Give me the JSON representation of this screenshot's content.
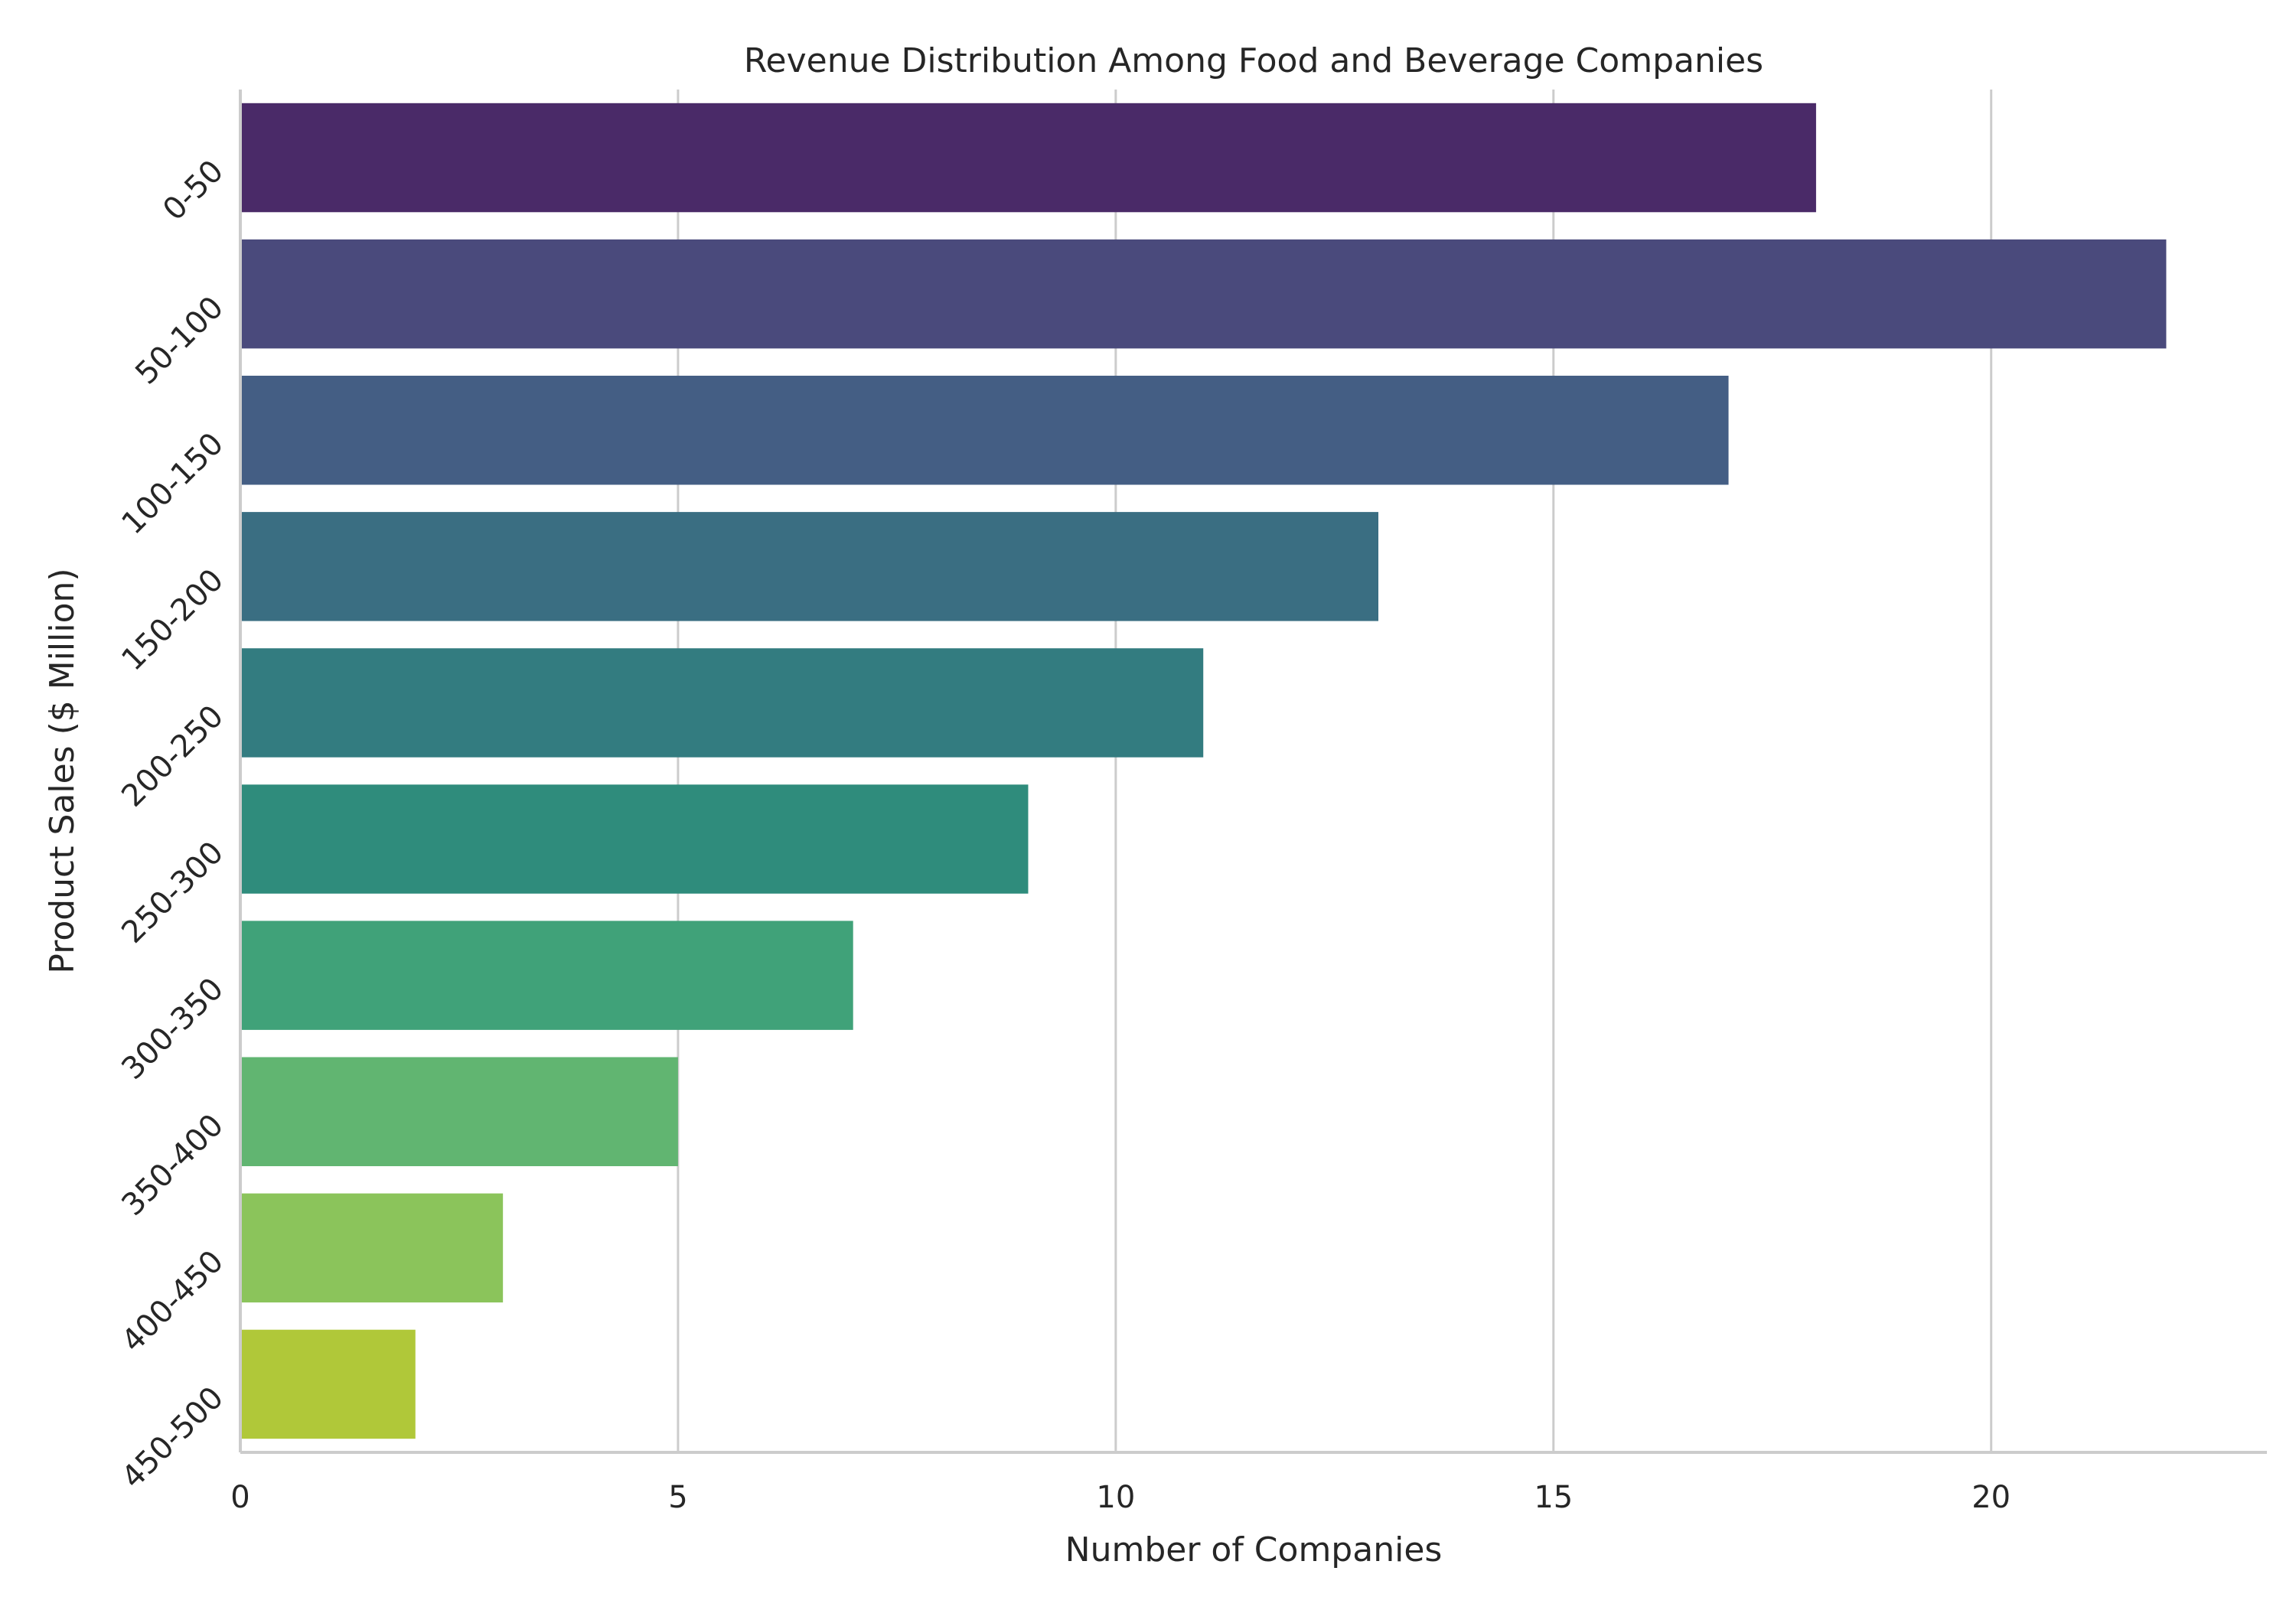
{
  "chart_data": {
    "type": "bar",
    "orientation": "horizontal",
    "title": "Revenue Distribution Among Food and Beverage Companies",
    "xlabel": "Number of Companies",
    "ylabel": "Product Sales ($ Million)",
    "categories": [
      "0-50",
      "50-100",
      "100-150",
      "150-200",
      "200-250",
      "250-300",
      "300-350",
      "350-400",
      "400-450",
      "450-500"
    ],
    "values": [
      18,
      22,
      17,
      13,
      11,
      9,
      7,
      5,
      3,
      2
    ],
    "colors": [
      "#4a2a68",
      "#4a4a7c",
      "#445e84",
      "#3a6e82",
      "#337c80",
      "#2f8c7c",
      "#40a279",
      "#61b571",
      "#8bc45b",
      "#b0c839"
    ],
    "xlim": [
      0,
      23.15
    ],
    "xticks": [
      0,
      5,
      10,
      15,
      20
    ],
    "grid": "vertical",
    "legend": "none",
    "tick_label_rotation": 45
  }
}
